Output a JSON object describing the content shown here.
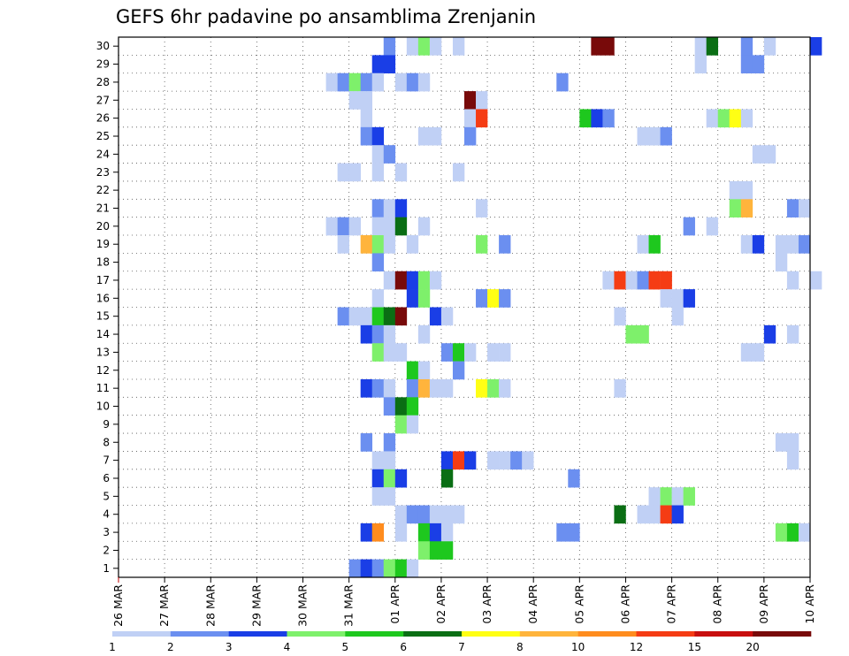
{
  "chart_data": {
    "type": "heatmap",
    "title": "GEFS 6hr padavine po ansamblima Zrenjanin",
    "xlabel": "",
    "ylabel": "",
    "y_ticks": [
      "1",
      "2",
      "3",
      "4",
      "5",
      "6",
      "7",
      "8",
      "9",
      "10",
      "11",
      "12",
      "13",
      "14",
      "15",
      "16",
      "17",
      "18",
      "19",
      "20",
      "21",
      "22",
      "23",
      "24",
      "25",
      "26",
      "27",
      "28",
      "29",
      "30"
    ],
    "x_ticks": [
      "26 MAR",
      "27 MAR",
      "28 MAR",
      "29 MAR",
      "30 MAR",
      "31 MAR",
      "01 APR",
      "02 APR",
      "03 APR",
      "04 APR",
      "05 APR",
      "06 APR",
      "07 APR",
      "08 APR",
      "09 APR",
      "10 APR"
    ],
    "x_range_days": [
      0,
      15
    ],
    "y_range": [
      0.5,
      30.5
    ],
    "step_hours": 6,
    "grid": true,
    "colorbar": {
      "position": "bottom",
      "labels": [
        "1",
        "2",
        "3",
        "4",
        "5",
        "6",
        "7",
        "8",
        "10",
        "12",
        "15",
        "20"
      ],
      "colors": [
        "#c0d0f5",
        "#6b8ff0",
        "#1a3ee6",
        "#7ef06b",
        "#1ec81e",
        "#0a6e14",
        "#ffff14",
        "#ffb43c",
        "#ff8c1e",
        "#f53c14",
        "#c80f0f",
        "#780a0a"
      ]
    },
    "points": [
      [
        30,
        23,
        2
      ],
      [
        30,
        25,
        1
      ],
      [
        30,
        26,
        4
      ],
      [
        30,
        27,
        1
      ],
      [
        30,
        29,
        1
      ],
      [
        30,
        41,
        12
      ],
      [
        30,
        42,
        12
      ],
      [
        30,
        50,
        1
      ],
      [
        30,
        51,
        6
      ],
      [
        30,
        54,
        2
      ],
      [
        30,
        56,
        1
      ],
      [
        30,
        60,
        3
      ],
      [
        29,
        22,
        3
      ],
      [
        29,
        23,
        3
      ],
      [
        29,
        50,
        1
      ],
      [
        29,
        54,
        2
      ],
      [
        29,
        55,
        2
      ],
      [
        28,
        18,
        1
      ],
      [
        28,
        19,
        2
      ],
      [
        28,
        20,
        4
      ],
      [
        28,
        21,
        2
      ],
      [
        28,
        22,
        1
      ],
      [
        28,
        24,
        1
      ],
      [
        28,
        25,
        2
      ],
      [
        28,
        26,
        1
      ],
      [
        28,
        38,
        2
      ],
      [
        27,
        20,
        1
      ],
      [
        27,
        21,
        1
      ],
      [
        27,
        30,
        12
      ],
      [
        27,
        31,
        1
      ],
      [
        26,
        21,
        1
      ],
      [
        26,
        30,
        1
      ],
      [
        26,
        31,
        10
      ],
      [
        26,
        40,
        5
      ],
      [
        26,
        41,
        3
      ],
      [
        26,
        42,
        2
      ],
      [
        26,
        51,
        1
      ],
      [
        26,
        52,
        4
      ],
      [
        26,
        53,
        7
      ],
      [
        26,
        54,
        1
      ],
      [
        25,
        21,
        2
      ],
      [
        25,
        22,
        3
      ],
      [
        25,
        26,
        1
      ],
      [
        25,
        27,
        1
      ],
      [
        25,
        30,
        2
      ],
      [
        25,
        45,
        1
      ],
      [
        25,
        46,
        1
      ],
      [
        25,
        47,
        2
      ],
      [
        24,
        22,
        1
      ],
      [
        24,
        23,
        2
      ],
      [
        24,
        55,
        1
      ],
      [
        24,
        56,
        1
      ],
      [
        23,
        19,
        1
      ],
      [
        23,
        20,
        1
      ],
      [
        23,
        22,
        1
      ],
      [
        23,
        24,
        1
      ],
      [
        23,
        29,
        1
      ],
      [
        22,
        53,
        1
      ],
      [
        22,
        54,
        1
      ],
      [
        21,
        22,
        2
      ],
      [
        21,
        23,
        1
      ],
      [
        21,
        24,
        3
      ],
      [
        21,
        31,
        1
      ],
      [
        21,
        53,
        4
      ],
      [
        21,
        54,
        8
      ],
      [
        21,
        58,
        2
      ],
      [
        21,
        59,
        1
      ],
      [
        20,
        18,
        1
      ],
      [
        20,
        19,
        2
      ],
      [
        20,
        20,
        1
      ],
      [
        20,
        22,
        1
      ],
      [
        20,
        23,
        1
      ],
      [
        20,
        24,
        6
      ],
      [
        20,
        26,
        1
      ],
      [
        20,
        49,
        2
      ],
      [
        20,
        51,
        1
      ],
      [
        19,
        19,
        1
      ],
      [
        19,
        21,
        8
      ],
      [
        19,
        22,
        4
      ],
      [
        19,
        23,
        1
      ],
      [
        19,
        25,
        1
      ],
      [
        19,
        31,
        4
      ],
      [
        19,
        33,
        2
      ],
      [
        19,
        45,
        1
      ],
      [
        19,
        46,
        5
      ],
      [
        19,
        54,
        1
      ],
      [
        19,
        55,
        3
      ],
      [
        19,
        57,
        1
      ],
      [
        19,
        58,
        1
      ],
      [
        19,
        59,
        2
      ],
      [
        18,
        22,
        2
      ],
      [
        18,
        57,
        1
      ],
      [
        17,
        23,
        1
      ],
      [
        17,
        24,
        12
      ],
      [
        17,
        25,
        3
      ],
      [
        17,
        26,
        4
      ],
      [
        17,
        27,
        1
      ],
      [
        17,
        42,
        1
      ],
      [
        17,
        43,
        10
      ],
      [
        17,
        44,
        1
      ],
      [
        17,
        45,
        2
      ],
      [
        17,
        46,
        10
      ],
      [
        17,
        47,
        10
      ],
      [
        17,
        58,
        1
      ],
      [
        17,
        60,
        1
      ],
      [
        16,
        22,
        1
      ],
      [
        16,
        25,
        3
      ],
      [
        16,
        26,
        4
      ],
      [
        16,
        31,
        2
      ],
      [
        16,
        32,
        7
      ],
      [
        16,
        33,
        2
      ],
      [
        16,
        47,
        1
      ],
      [
        16,
        48,
        1
      ],
      [
        16,
        49,
        3
      ],
      [
        15,
        19,
        2
      ],
      [
        15,
        20,
        1
      ],
      [
        15,
        21,
        1
      ],
      [
        15,
        22,
        5
      ],
      [
        15,
        23,
        6
      ],
      [
        15,
        24,
        12
      ],
      [
        15,
        27,
        3
      ],
      [
        15,
        28,
        1
      ],
      [
        15,
        43,
        1
      ],
      [
        15,
        48,
        1
      ],
      [
        14,
        21,
        3
      ],
      [
        14,
        22,
        2
      ],
      [
        14,
        23,
        1
      ],
      [
        14,
        26,
        1
      ],
      [
        14,
        44,
        4
      ],
      [
        14,
        45,
        4
      ],
      [
        14,
        56,
        3
      ],
      [
        14,
        58,
        1
      ],
      [
        13,
        22,
        4
      ],
      [
        13,
        23,
        1
      ],
      [
        13,
        24,
        1
      ],
      [
        13,
        28,
        2
      ],
      [
        13,
        29,
        5
      ],
      [
        13,
        30,
        1
      ],
      [
        13,
        32,
        1
      ],
      [
        13,
        33,
        1
      ],
      [
        13,
        54,
        1
      ],
      [
        13,
        55,
        1
      ],
      [
        12,
        25,
        5
      ],
      [
        12,
        26,
        1
      ],
      [
        12,
        29,
        2
      ],
      [
        11,
        21,
        3
      ],
      [
        11,
        22,
        2
      ],
      [
        11,
        23,
        1
      ],
      [
        11,
        25,
        2
      ],
      [
        11,
        26,
        8
      ],
      [
        11,
        27,
        1
      ],
      [
        11,
        28,
        1
      ],
      [
        11,
        31,
        7
      ],
      [
        11,
        32,
        4
      ],
      [
        11,
        33,
        1
      ],
      [
        11,
        43,
        1
      ],
      [
        10,
        23,
        2
      ],
      [
        10,
        24,
        6
      ],
      [
        10,
        25,
        5
      ],
      [
        9,
        24,
        4
      ],
      [
        9,
        25,
        1
      ],
      [
        8,
        21,
        2
      ],
      [
        8,
        23,
        2
      ],
      [
        8,
        57,
        1
      ],
      [
        8,
        58,
        1
      ],
      [
        7,
        22,
        1
      ],
      [
        7,
        23,
        1
      ],
      [
        7,
        28,
        3
      ],
      [
        7,
        29,
        10
      ],
      [
        7,
        30,
        3
      ],
      [
        7,
        32,
        1
      ],
      [
        7,
        33,
        1
      ],
      [
        7,
        34,
        2
      ],
      [
        7,
        35,
        1
      ],
      [
        7,
        58,
        1
      ],
      [
        6,
        22,
        3
      ],
      [
        6,
        23,
        4
      ],
      [
        6,
        24,
        3
      ],
      [
        6,
        28,
        6
      ],
      [
        6,
        39,
        2
      ],
      [
        5,
        22,
        1
      ],
      [
        5,
        23,
        1
      ],
      [
        5,
        46,
        1
      ],
      [
        5,
        47,
        4
      ],
      [
        5,
        48,
        1
      ],
      [
        5,
        49,
        4
      ],
      [
        4,
        24,
        1
      ],
      [
        4,
        25,
        2
      ],
      [
        4,
        26,
        2
      ],
      [
        4,
        27,
        1
      ],
      [
        4,
        28,
        1
      ],
      [
        4,
        29,
        1
      ],
      [
        4,
        43,
        6
      ],
      [
        4,
        45,
        1
      ],
      [
        4,
        46,
        1
      ],
      [
        4,
        47,
        10
      ],
      [
        4,
        48,
        3
      ],
      [
        3,
        21,
        3
      ],
      [
        3,
        22,
        9
      ],
      [
        3,
        24,
        1
      ],
      [
        3,
        26,
        5
      ],
      [
        3,
        27,
        3
      ],
      [
        3,
        28,
        1
      ],
      [
        3,
        38,
        2
      ],
      [
        3,
        39,
        2
      ],
      [
        3,
        57,
        4
      ],
      [
        3,
        58,
        5
      ],
      [
        3,
        59,
        1
      ],
      [
        2,
        26,
        4
      ],
      [
        2,
        27,
        5
      ],
      [
        2,
        28,
        5
      ],
      [
        1,
        20,
        2
      ],
      [
        1,
        21,
        3
      ],
      [
        1,
        22,
        2
      ],
      [
        1,
        23,
        4
      ],
      [
        1,
        24,
        5
      ],
      [
        1,
        25,
        1
      ]
    ]
  }
}
